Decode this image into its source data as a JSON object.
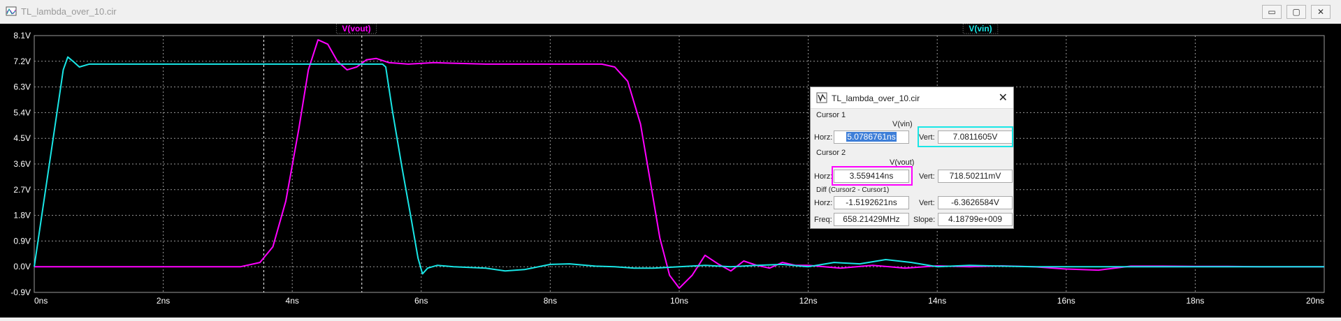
{
  "window": {
    "title": "TL_lambda_over_10.cir",
    "min": "▭",
    "max": "▢",
    "close": "✕"
  },
  "colors": {
    "vout": "#ff00ff",
    "vin": "#19e6e6",
    "background": "#000000",
    "grid": "#9a9a9a"
  },
  "chart_data": {
    "type": "line",
    "xlim": [
      0,
      20
    ],
    "ylim": [
      -0.9,
      8.1
    ],
    "x_ticks": [
      "0ns",
      "2ns",
      "4ns",
      "6ns",
      "8ns",
      "10ns",
      "12ns",
      "14ns",
      "16ns",
      "18ns",
      "20ns"
    ],
    "y_ticks": [
      "8.1V",
      "7.2V",
      "6.3V",
      "5.4V",
      "4.5V",
      "3.6V",
      "2.7V",
      "1.8V",
      "0.9V",
      "0.0V",
      "-0.9V"
    ],
    "series": [
      {
        "name": "V(vout)",
        "x": [
          0,
          1,
          2,
          3,
          3.2,
          3.5,
          3.7,
          3.9,
          4.1,
          4.25,
          4.4,
          4.55,
          4.7,
          4.85,
          5.0,
          5.15,
          5.3,
          5.5,
          5.8,
          6.2,
          7,
          8,
          8.8,
          9.0,
          9.2,
          9.4,
          9.55,
          9.7,
          9.85,
          10.0,
          10.2,
          10.4,
          10.6,
          10.8,
          11.0,
          11.2,
          11.4,
          11.6,
          11.8,
          12.0,
          12.5,
          13,
          13.5,
          14,
          14.5,
          15,
          15.5,
          16,
          16.5,
          17,
          17.5,
          18,
          18.5,
          19,
          20
        ],
        "y": [
          0,
          0,
          0,
          0,
          0,
          0.15,
          0.7,
          2.3,
          4.8,
          6.9,
          7.95,
          7.8,
          7.2,
          6.9,
          7.0,
          7.25,
          7.3,
          7.15,
          7.1,
          7.15,
          7.1,
          7.1,
          7.1,
          7.0,
          6.5,
          5.0,
          3.0,
          1.0,
          -0.3,
          -0.75,
          -0.3,
          0.4,
          0.1,
          -0.15,
          0.2,
          0.05,
          -0.05,
          0.15,
          0.05,
          0.05,
          -0.05,
          0.05,
          -0.05,
          0.03,
          0,
          0.03,
          0,
          -0.08,
          -0.12,
          0.02,
          0.02,
          0.01,
          0.01,
          0,
          0
        ]
      },
      {
        "name": "V(vin)",
        "x": [
          0,
          0.15,
          0.3,
          0.45,
          0.52,
          0.6,
          0.7,
          0.85,
          1.0,
          2,
          3,
          4,
          5,
          5.2,
          5.4,
          5.45,
          5.55,
          5.7,
          5.85,
          5.95,
          6.02,
          6.1,
          6.25,
          6.5,
          7,
          7.3,
          7.6,
          8,
          8.3,
          8.7,
          9,
          9.3,
          9.6,
          10,
          10.4,
          10.8,
          11.2,
          11.6,
          12,
          12.4,
          12.8,
          13.2,
          13.6,
          14,
          14.5,
          15,
          15.5,
          16,
          17,
          18,
          19,
          20
        ],
        "y": [
          0,
          2.3,
          4.6,
          6.9,
          7.35,
          7.2,
          7.0,
          7.1,
          7.1,
          7.1,
          7.1,
          7.1,
          7.1,
          7.1,
          7.1,
          7.0,
          5.5,
          3.5,
          1.6,
          0.3,
          -0.25,
          -0.05,
          0.05,
          0,
          -0.05,
          -0.15,
          -0.1,
          0.08,
          0.1,
          0.02,
          0,
          -0.05,
          -0.05,
          0,
          0.05,
          0,
          0.05,
          0.08,
          0,
          0.15,
          0.1,
          0.25,
          0.15,
          0,
          0.05,
          0.02,
          0,
          0,
          0,
          0,
          0,
          0
        ]
      }
    ]
  },
  "cursors": {
    "cursor1_time_ns": 5.0786761,
    "cursor2_time_ns": 3.559414
  },
  "dialog": {
    "title": "TL_lambda_over_10.cir",
    "close": "✕",
    "cursor1": {
      "section": "Cursor 1",
      "trace": "V(vin)",
      "horz_label": "Horz:",
      "horz": "5.0786761ns",
      "vert_label": "Vert:",
      "vert": "7.0811605V"
    },
    "cursor2": {
      "section": "Cursor 2",
      "trace": "V(vout)",
      "horz_label": "Horz:",
      "horz": "3.559414ns",
      "vert_label": "Vert:",
      "vert": "718.50211mV"
    },
    "diff": {
      "section": "Diff (Cursor2 - Cursor1)",
      "horz_label": "Horz:",
      "horz": "-1.5192621ns",
      "vert_label": "Vert:",
      "vert": "-6.3626584V",
      "freq_label": "Freq:",
      "freq": "658.21429MHz",
      "slope_label": "Slope:",
      "slope": "4.18799e+009"
    }
  }
}
